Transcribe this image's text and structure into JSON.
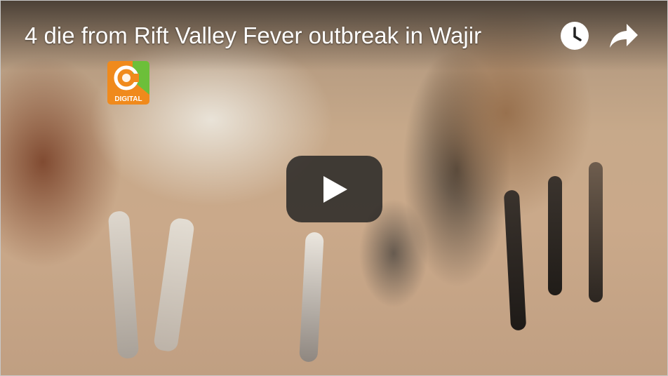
{
  "video": {
    "title": "4 die from Rift Valley Fever outbreak in Wajir"
  },
  "channel_logo": {
    "text": "DIGITAL",
    "colors": {
      "orange": "#f08a1c",
      "green": "#6cbf3a"
    }
  },
  "controls": {
    "watch_later_icon": "clock-icon",
    "share_icon": "share-arrow-icon",
    "play_icon": "play-icon"
  }
}
